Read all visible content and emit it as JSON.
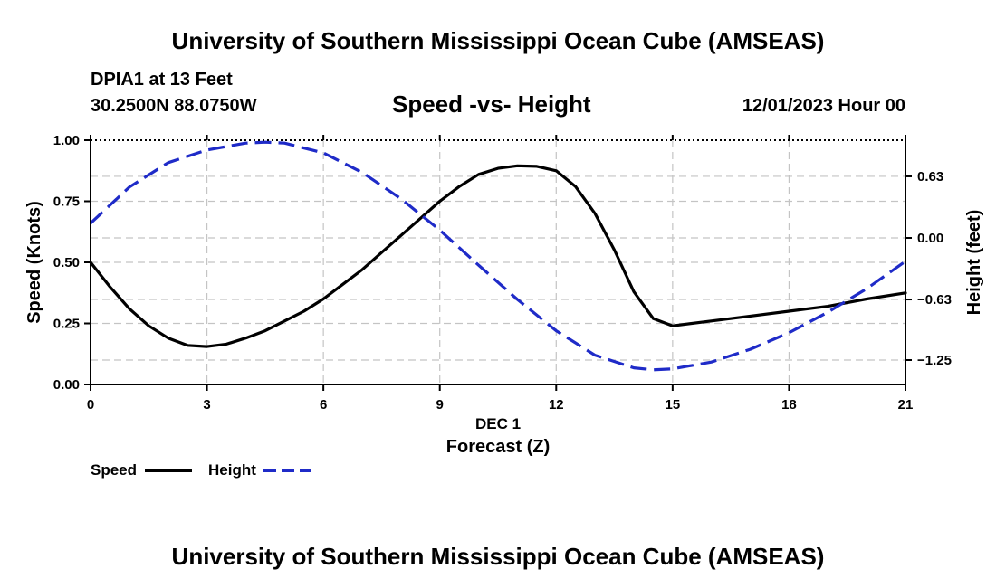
{
  "header": {
    "top_title": "University of Southern Mississippi Ocean Cube (AMSEAS)",
    "station": "DPIA1 at 13 Feet",
    "location": "30.2500N  88.0750W",
    "chart_title": "Speed -vs- Height",
    "datetime": "12/01/2023 Hour 00",
    "bottom_title": "University of Southern Mississippi Ocean Cube (AMSEAS)"
  },
  "chart_data": {
    "type": "line",
    "title": "Speed -vs- Height",
    "xlabel": "Forecast (Z)",
    "xlabel_date": "DEC 1",
    "ylabel": "Speed (Knots)",
    "y2label": "Height (feet)",
    "xlim": [
      0,
      21
    ],
    "ylim": [
      0,
      1
    ],
    "y2lim": [
      -1.5,
      1.0
    ],
    "x_ticks": [
      0,
      3,
      6,
      9,
      12,
      15,
      18,
      21
    ],
    "x_tick_labels": [
      "0",
      "3",
      "6",
      "9",
      "12",
      "15",
      "18",
      "21"
    ],
    "y_ticks": [
      0,
      0.25,
      0.5,
      0.75,
      1.0
    ],
    "y_tick_labels": [
      "0.00",
      "0.25",
      "0.50",
      "0.75",
      "1.00"
    ],
    "y2_ticks": [
      0.63,
      0.0,
      -0.63,
      -1.25
    ],
    "y2_tick_labels": [
      "0.63",
      "0.00",
      "−0.63",
      "−1.25"
    ],
    "grid": true,
    "series": [
      {
        "name": "Speed",
        "axis": "left",
        "color": "#000000",
        "style": "solid",
        "x": [
          0,
          0.5,
          1,
          1.5,
          2,
          2.5,
          3,
          3.5,
          4,
          4.5,
          5,
          5.5,
          6,
          6.5,
          7,
          7.5,
          8,
          8.5,
          9,
          9.5,
          10,
          10.5,
          11,
          11.5,
          12,
          12.5,
          13,
          13.5,
          14,
          14.5,
          15,
          16,
          17,
          18,
          19,
          20,
          21
        ],
        "values": [
          0.5,
          0.4,
          0.31,
          0.24,
          0.19,
          0.16,
          0.155,
          0.165,
          0.19,
          0.22,
          0.26,
          0.3,
          0.35,
          0.41,
          0.47,
          0.54,
          0.61,
          0.68,
          0.75,
          0.81,
          0.86,
          0.885,
          0.895,
          0.893,
          0.875,
          0.81,
          0.7,
          0.55,
          0.38,
          0.27,
          0.24,
          0.26,
          0.28,
          0.3,
          0.32,
          0.35,
          0.375
        ]
      },
      {
        "name": "Height",
        "axis": "right",
        "color": "#1f2bc8",
        "style": "dashed",
        "x": [
          0,
          1,
          2,
          3,
          4,
          4.5,
          5,
          6,
          7,
          8,
          9,
          10,
          11,
          12,
          13,
          14,
          14.5,
          15,
          16,
          17,
          18,
          19,
          20,
          21
        ],
        "values": [
          0.15,
          0.52,
          0.77,
          0.9,
          0.97,
          0.98,
          0.97,
          0.87,
          0.67,
          0.4,
          0.08,
          -0.28,
          -0.63,
          -0.95,
          -1.2,
          -1.33,
          -1.35,
          -1.34,
          -1.27,
          -1.14,
          -0.97,
          -0.76,
          -0.52,
          -0.24
        ]
      }
    ],
    "legend": [
      {
        "label": "Speed",
        "color": "#000000",
        "style": "solid"
      },
      {
        "label": "Height",
        "color": "#1f2bc8",
        "style": "dashed"
      }
    ],
    "legend_position": "bottom-left"
  }
}
